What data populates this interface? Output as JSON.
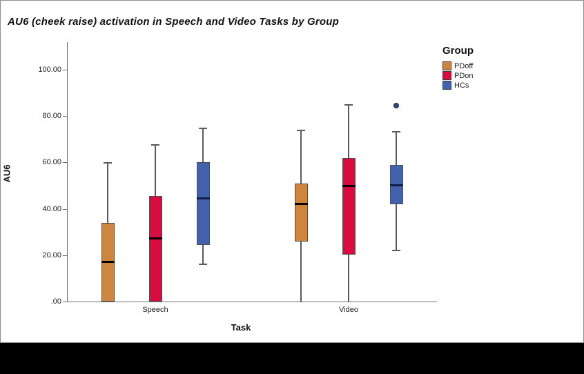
{
  "page": {
    "title": "AU6 (cheek raise) activation in Speech and Video Tasks by Group"
  },
  "chart_data": {
    "type": "boxplot",
    "title": "AU6 (cheek raise) activation in Speech and Video Tasks by Group",
    "xlabel": "Task",
    "ylabel": "AU6",
    "categories": [
      "Speech",
      "Video"
    ],
    "y_ticks": [
      ".00",
      "20.00",
      "40.00",
      "60.00",
      "80.00",
      "100.00"
    ],
    "y_tick_values": [
      0,
      20,
      40,
      60,
      80,
      100
    ],
    "ylim": [
      0,
      112
    ],
    "grid": false,
    "legend": {
      "title": "Group",
      "position": "top-right"
    },
    "series": [
      {
        "name": "PDoff",
        "color": "#CD8540",
        "median_color": "#000000",
        "boxes": [
          {
            "category": "Speech",
            "whisker_low": null,
            "q1": 0,
            "median": 17.2,
            "q3": 34,
            "whisker_high": 60,
            "outliers": []
          },
          {
            "category": "Video",
            "whisker_low": 0,
            "q1": 26,
            "median": 42.4,
            "q3": 51,
            "whisker_high": 74,
            "outliers": []
          }
        ]
      },
      {
        "name": "PDon",
        "color": "#DA0B3F",
        "median_color": "#000000",
        "boxes": [
          {
            "category": "Speech",
            "whisker_low": null,
            "q1": 0,
            "median": 27.3,
            "q3": 45.5,
            "whisker_high": 68,
            "outliers": []
          },
          {
            "category": "Video",
            "whisker_low": 0,
            "q1": 20.3,
            "median": 50,
            "q3": 62,
            "whisker_high": 85,
            "outliers": []
          }
        ]
      },
      {
        "name": "HCs",
        "color": "#4263AC",
        "median_color": "#101f49",
        "outlier_color": "#2e4a8e",
        "boxes": [
          {
            "category": "Speech",
            "whisker_low": 16,
            "q1": 24.3,
            "median": 44.5,
            "q3": 60,
            "whisker_high": 75,
            "outliers": []
          },
          {
            "category": "Video",
            "whisker_low": 22,
            "q1": 42,
            "median": 50.2,
            "q3": 59,
            "whisker_high": 73.5,
            "outliers": [
              84.5
            ]
          }
        ]
      }
    ],
    "colors": {
      "box_border": "#4e4e4e",
      "whisker": "#5a5a5a",
      "axis": "#6e6e6e",
      "background": "#ffffff"
    }
  }
}
